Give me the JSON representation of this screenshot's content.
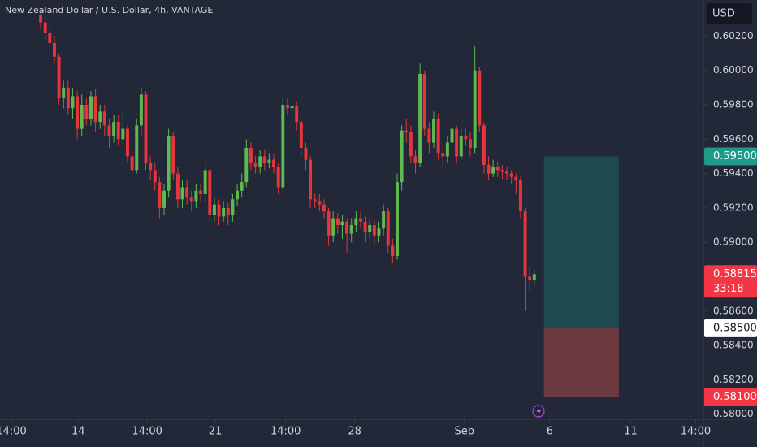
{
  "header": {
    "title": "New Zealand Dollar / U.S. Dollar, 4h, VANTAGE",
    "currency": "USD"
  },
  "chart_data": {
    "type": "candlestick",
    "up_color": "#5fb94d",
    "down_color": "#e8343b",
    "xlim": [
      -8.9,
      145
    ],
    "xticks": [
      {
        "value": -6.4,
        "label": "14:00"
      },
      {
        "value": 8.2,
        "label": "14"
      },
      {
        "value": 23.3,
        "label": "14:00"
      },
      {
        "value": 38.2,
        "label": "21"
      },
      {
        "value": 53.6,
        "label": "14:00"
      },
      {
        "value": 68.7,
        "label": "28"
      },
      {
        "value": 92.7,
        "label": "Sep"
      },
      {
        "value": 111.4,
        "label": "6"
      },
      {
        "value": 129.1,
        "label": "11"
      },
      {
        "value": 143.3,
        "label": "14:00"
      }
    ],
    "ylim": [
      0.5797,
      0.6041
    ],
    "yticks": [
      {
        "value": 0.58,
        "label": "0.58000"
      },
      {
        "value": 0.582,
        "label": "0.58200"
      },
      {
        "value": 0.584,
        "label": "0.58400"
      },
      {
        "value": 0.586,
        "label": "0.58600"
      },
      {
        "value": 0.588,
        "label": "0.58800"
      },
      {
        "value": 0.59,
        "label": "0.59000"
      },
      {
        "value": 0.592,
        "label": "0.59200"
      },
      {
        "value": 0.594,
        "label": "0.59400"
      },
      {
        "value": 0.596,
        "label": "0.59600"
      },
      {
        "value": 0.598,
        "label": "0.59800"
      },
      {
        "value": 0.6,
        "label": "0.60000"
      },
      {
        "value": 0.602,
        "label": "0.60200"
      }
    ],
    "open": [
      0.6032,
      0.6028,
      0.6022,
      0.6016,
      0.6008,
      0.5984,
      0.599,
      0.5978,
      0.5985,
      0.5966,
      0.598,
      0.5972,
      0.5985,
      0.597,
      0.5976,
      0.5968,
      0.5962,
      0.597,
      0.596,
      0.5966,
      0.595,
      0.5942,
      0.5968,
      0.5986,
      0.5946,
      0.5942,
      0.5935,
      0.592,
      0.593,
      0.5962,
      0.594,
      0.5925,
      0.5932,
      0.5926,
      0.5924,
      0.593,
      0.5928,
      0.5942,
      0.5916,
      0.5922,
      0.5915,
      0.592,
      0.5916,
      0.5925,
      0.593,
      0.5935,
      0.5955,
      0.5946,
      0.5944,
      0.595,
      0.5946,
      0.5948,
      0.5944,
      0.5932,
      0.598,
      0.5978,
      0.5979,
      0.597,
      0.5955,
      0.5948,
      0.5925,
      0.5924,
      0.5922,
      0.5918,
      0.5904,
      0.5914,
      0.591,
      0.5912,
      0.5905,
      0.591,
      0.5914,
      0.5912,
      0.5906,
      0.591,
      0.5904,
      0.5908,
      0.5918,
      0.5898,
      0.5892,
      0.5935,
      0.5965,
      0.5964,
      0.595,
      0.5946,
      0.5998,
      0.5966,
      0.5958,
      0.5972,
      0.5952,
      0.595,
      0.5958,
      0.5966,
      0.595,
      0.5962,
      0.596,
      0.5955,
      0.6,
      0.5968,
      0.5945,
      0.594,
      0.5944,
      0.5942,
      0.5941,
      0.594,
      0.5938,
      0.5936,
      0.5918,
      0.588,
      0.5878
    ],
    "high": [
      0.6036,
      0.6031,
      0.6025,
      0.602,
      0.601,
      0.5994,
      0.5994,
      0.599,
      0.5988,
      0.5986,
      0.5984,
      0.5988,
      0.5989,
      0.598,
      0.598,
      0.5972,
      0.5974,
      0.5974,
      0.5978,
      0.5968,
      0.5954,
      0.5972,
      0.599,
      0.5988,
      0.595,
      0.5946,
      0.5938,
      0.5934,
      0.5966,
      0.5964,
      0.5944,
      0.5936,
      0.5936,
      0.593,
      0.5934,
      0.5934,
      0.5946,
      0.5945,
      0.5926,
      0.5925,
      0.5924,
      0.5923,
      0.5928,
      0.5934,
      0.594,
      0.596,
      0.5958,
      0.595,
      0.5954,
      0.5954,
      0.5952,
      0.5951,
      0.5946,
      0.5984,
      0.5984,
      0.5982,
      0.5982,
      0.5972,
      0.5958,
      0.595,
      0.5928,
      0.5928,
      0.5925,
      0.592,
      0.5918,
      0.5917,
      0.5916,
      0.5914,
      0.5914,
      0.5918,
      0.5918,
      0.5915,
      0.5914,
      0.5913,
      0.5912,
      0.5922,
      0.592,
      0.5902,
      0.594,
      0.5968,
      0.5972,
      0.5968,
      0.5954,
      0.6004,
      0.6,
      0.597,
      0.5976,
      0.5975,
      0.5956,
      0.5962,
      0.597,
      0.5968,
      0.5966,
      0.5966,
      0.5964,
      0.6014,
      0.6002,
      0.597,
      0.595,
      0.5948,
      0.5947,
      0.5945,
      0.5944,
      0.5942,
      0.594,
      0.5938,
      0.592,
      0.5886,
      0.5884
    ],
    "low": [
      0.6024,
      0.6018,
      0.6012,
      0.6004,
      0.598,
      0.5978,
      0.5974,
      0.5972,
      0.596,
      0.5962,
      0.5968,
      0.5968,
      0.5964,
      0.5966,
      0.5962,
      0.5955,
      0.5958,
      0.5956,
      0.5956,
      0.5946,
      0.5938,
      0.594,
      0.5962,
      0.5942,
      0.5936,
      0.593,
      0.5914,
      0.5916,
      0.5926,
      0.5936,
      0.592,
      0.592,
      0.5922,
      0.5918,
      0.592,
      0.5924,
      0.5924,
      0.5912,
      0.5912,
      0.591,
      0.5912,
      0.591,
      0.5912,
      0.5921,
      0.5926,
      0.5932,
      0.5942,
      0.594,
      0.594,
      0.5942,
      0.5943,
      0.594,
      0.5928,
      0.593,
      0.5974,
      0.5972,
      0.5965,
      0.595,
      0.5942,
      0.592,
      0.592,
      0.5918,
      0.5914,
      0.5898,
      0.59,
      0.5905,
      0.5902,
      0.5894,
      0.59,
      0.5906,
      0.5908,
      0.59,
      0.5902,
      0.5898,
      0.59,
      0.5904,
      0.5894,
      0.5888,
      0.589,
      0.593,
      0.5958,
      0.5946,
      0.594,
      0.5944,
      0.5962,
      0.5952,
      0.5955,
      0.5948,
      0.5944,
      0.5946,
      0.5954,
      0.5946,
      0.5948,
      0.5956,
      0.595,
      0.5952,
      0.5964,
      0.594,
      0.5936,
      0.5938,
      0.5938,
      0.5937,
      0.5936,
      0.5934,
      0.5928,
      0.5914,
      0.586,
      0.5872,
      0.5875
    ],
    "close": [
      0.6028,
      0.6022,
      0.6016,
      0.6008,
      0.5984,
      0.599,
      0.5978,
      0.5985,
      0.5966,
      0.598,
      0.5972,
      0.5985,
      0.597,
      0.5976,
      0.5968,
      0.5962,
      0.597,
      0.596,
      0.5966,
      0.595,
      0.5942,
      0.5968,
      0.5986,
      0.5946,
      0.5942,
      0.5935,
      0.592,
      0.593,
      0.5962,
      0.594,
      0.5925,
      0.5932,
      0.5926,
      0.5924,
      0.593,
      0.5928,
      0.5942,
      0.5916,
      0.5922,
      0.5915,
      0.592,
      0.5916,
      0.5925,
      0.593,
      0.5935,
      0.5955,
      0.5946,
      0.5944,
      0.595,
      0.5946,
      0.5948,
      0.5944,
      0.5932,
      0.598,
      0.5978,
      0.5979,
      0.597,
      0.5955,
      0.5948,
      0.5925,
      0.5924,
      0.5922,
      0.5918,
      0.5904,
      0.5914,
      0.591,
      0.5912,
      0.5905,
      0.591,
      0.5914,
      0.5912,
      0.5906,
      0.591,
      0.5904,
      0.5908,
      0.5918,
      0.5898,
      0.5892,
      0.5935,
      0.5965,
      0.5964,
      0.595,
      0.5946,
      0.5998,
      0.5966,
      0.5958,
      0.5972,
      0.5952,
      0.595,
      0.5958,
      0.5966,
      0.595,
      0.5962,
      0.596,
      0.5955,
      0.6,
      0.5968,
      0.5945,
      0.594,
      0.5944,
      0.5942,
      0.5941,
      0.594,
      0.5938,
      0.5936,
      0.5918,
      0.588,
      0.5878,
      0.58815
    ],
    "position": {
      "target": 0.595,
      "entry": 0.585,
      "stop": 0.581,
      "x_range": [
        110.1,
        126.5
      ],
      "profit_color": "#1d4a4f",
      "loss_color": "#6b3a40"
    },
    "price_labels": [
      {
        "value": 0.595,
        "label": "0.59500",
        "color": "#1f9a88",
        "text_color": "#ffffff"
      },
      {
        "value": 0.58815,
        "color": "#f23645",
        "text_color": "#ffffff",
        "countdown": "33:18"
      },
      {
        "value": 0.585,
        "label": "0.58500",
        "color": "#ffffff",
        "text_color": "#131722"
      },
      {
        "value": 0.581,
        "label": "0.58100",
        "color": "#f23645",
        "text_color": "#ffffff"
      }
    ]
  }
}
